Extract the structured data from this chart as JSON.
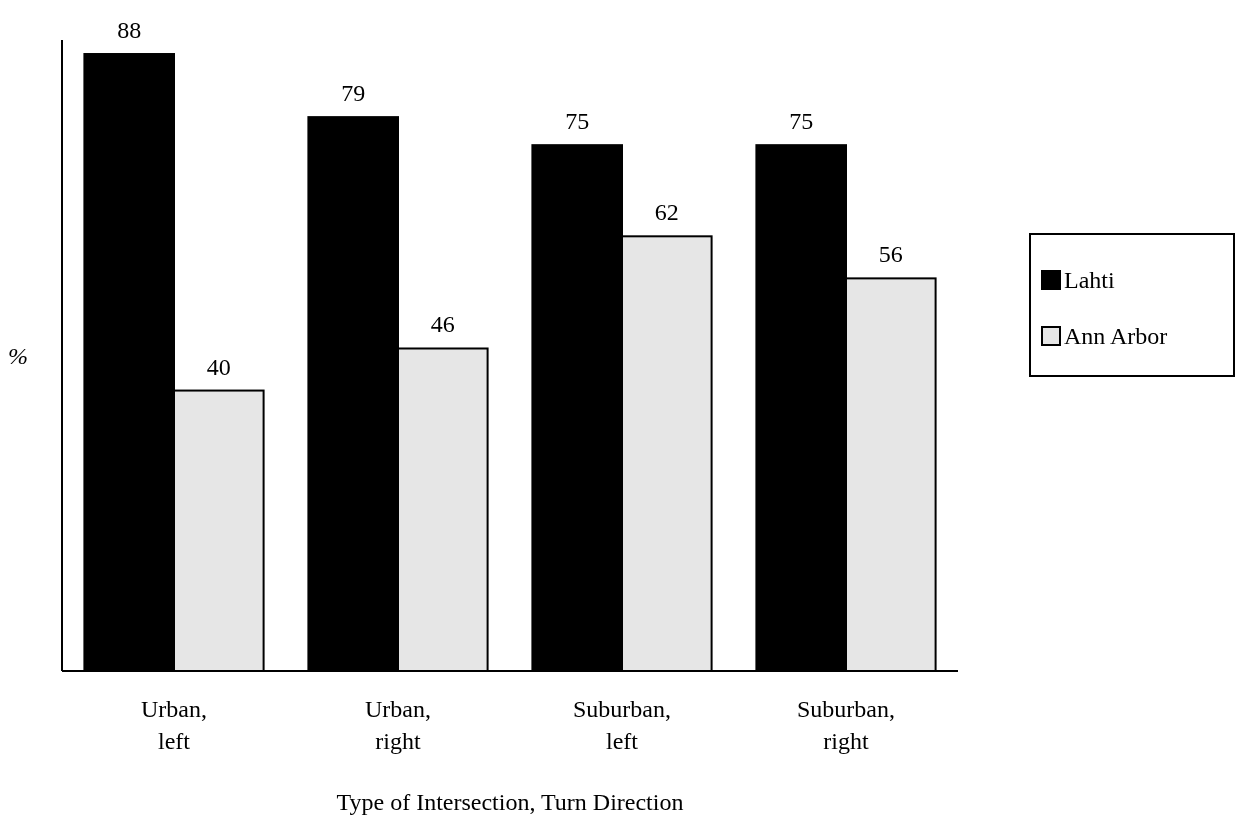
{
  "chart_data": {
    "type": "bar",
    "xlabel": "Type of Intersection, Turn Direction",
    "ylabel": "%",
    "categories": [
      "Urban, left",
      "Urban, right",
      "Suburban, left",
      "Suburban, right"
    ],
    "series": [
      {
        "name": "Lahti",
        "color": "#000000",
        "values": [
          88,
          79,
          75,
          75
        ]
      },
      {
        "name": "Ann Arbor",
        "color": "#e6e6e6",
        "values": [
          40,
          46,
          62,
          56
        ]
      }
    ],
    "ylim": [
      0,
      90
    ],
    "data_labels": true,
    "legend": "right"
  }
}
